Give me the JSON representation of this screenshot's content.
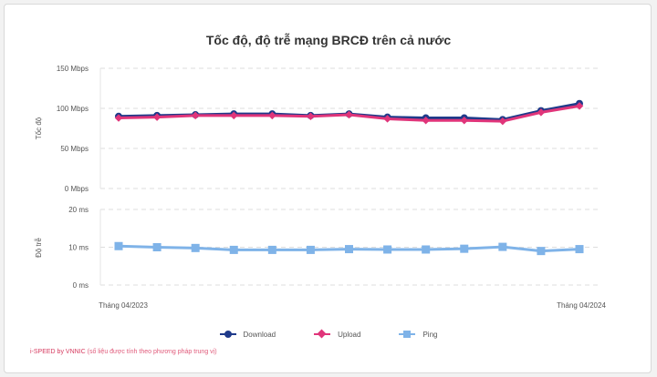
{
  "chart_title": "Tốc độ, độ trễ mạng BRCĐ trên cả nước",
  "chart_data": [
    {
      "type": "line",
      "ylabel": "Tốc độ",
      "ylim": [
        0,
        150
      ],
      "yticks": [
        0,
        50,
        100,
        150
      ],
      "ytick_labels": [
        "0 Mbps",
        "50 Mbps",
        "100 Mbps",
        "150 Mbps"
      ],
      "grid": true,
      "x_labels_shown": [
        "Tháng 04/2023",
        "Tháng 04/2024"
      ],
      "series": [
        {
          "name": "Download",
          "color": "#1f3a8a",
          "marker": "circle",
          "values": [
            90,
            91,
            92,
            93,
            93,
            91,
            93,
            89,
            88,
            88,
            86,
            97,
            106
          ]
        },
        {
          "name": "Upload",
          "color": "#e0357a",
          "marker": "diamond",
          "values": [
            88,
            89,
            91,
            91,
            91,
            90,
            92,
            87,
            85,
            85,
            84,
            95,
            103
          ]
        }
      ]
    },
    {
      "type": "line",
      "ylabel": "Độ trễ",
      "ylim": [
        0,
        20
      ],
      "yticks": [
        0,
        10,
        20
      ],
      "ytick_labels": [
        "0 ms",
        "10 ms",
        "20 ms"
      ],
      "grid": true,
      "series": [
        {
          "name": "Ping",
          "color": "#7fb3e8",
          "marker": "square",
          "values": [
            10.3,
            10.0,
            9.8,
            9.3,
            9.3,
            9.3,
            9.5,
            9.4,
            9.4,
            9.6,
            10.1,
            9.0,
            9.5
          ]
        }
      ]
    }
  ],
  "legend": [
    {
      "label": "Download",
      "color": "#1f3a8a",
      "marker": "circle"
    },
    {
      "label": "Upload",
      "color": "#e0357a",
      "marker": "diamond"
    },
    {
      "label": "Ping",
      "color": "#7fb3e8",
      "marker": "square"
    }
  ],
  "source": {
    "brand": "i-SPEED by VNNIC",
    "note": "(số liệu được tính theo phương pháp trung vị)"
  }
}
